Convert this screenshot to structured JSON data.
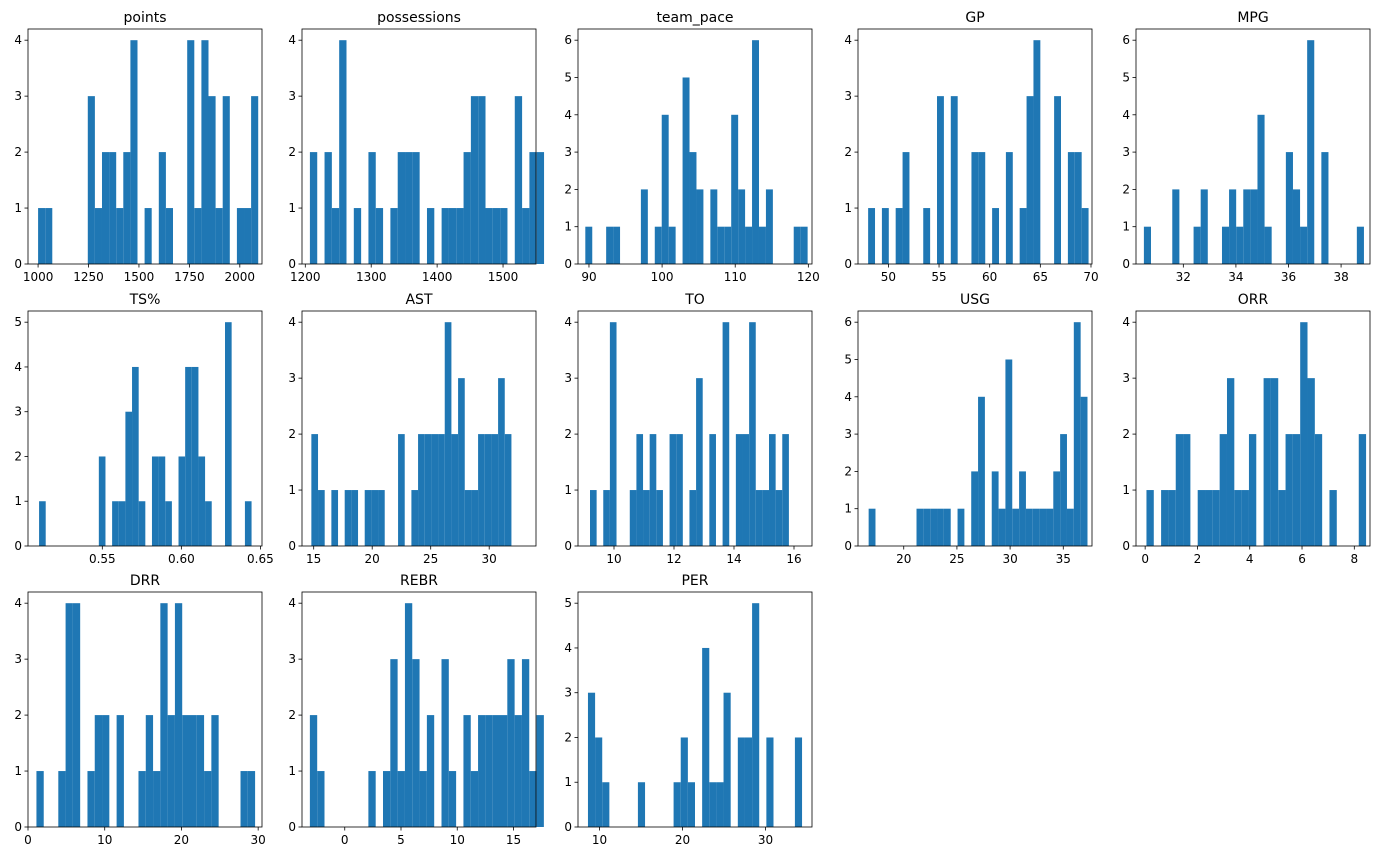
{
  "chart_data": [
    {
      "type": "bar",
      "title": "points",
      "xlim": [
        950,
        2110
      ],
      "ylim": [
        0,
        4.2
      ],
      "yticks": [
        0,
        1,
        2,
        3,
        4
      ],
      "xticks": [
        1000,
        1250,
        1500,
        1750,
        2000
      ],
      "xtick_labels": [
        "1000",
        "1250",
        "1500",
        "1750",
        "2000"
      ],
      "bins": {
        "start": 1000,
        "width": 35.2
      },
      "values": [
        1,
        1,
        0,
        0,
        0,
        0,
        0,
        3,
        1,
        2,
        2,
        1,
        2,
        4,
        0,
        1,
        0,
        2,
        1,
        0,
        0,
        4,
        1,
        4,
        3,
        1,
        3,
        0,
        1,
        1,
        3
      ]
    },
    {
      "type": "bar",
      "title": "possessions",
      "xlim": [
        1195,
        1550
      ],
      "ylim": [
        0,
        4.2
      ],
      "yticks": [
        0,
        1,
        2,
        3,
        4
      ],
      "xticks": [
        1200,
        1300,
        1400,
        1500
      ],
      "xtick_labels": [
        "1200",
        "1300",
        "1400",
        "1500"
      ],
      "bins": {
        "start": 1207,
        "width": 11.1
      },
      "values": [
        2,
        0,
        2,
        1,
        4,
        0,
        1,
        0,
        2,
        1,
        0,
        1,
        2,
        2,
        2,
        0,
        1,
        0,
        1,
        1,
        1,
        2,
        3,
        3,
        1,
        1,
        1,
        0,
        3,
        1,
        2,
        2
      ]
    },
    {
      "type": "bar",
      "title": "team_pace",
      "xlim": [
        88.5,
        120.5
      ],
      "ylim": [
        0,
        6.3
      ],
      "yticks": [
        0,
        1,
        2,
        3,
        4,
        5,
        6
      ],
      "xticks": [
        90,
        100,
        110,
        120
      ],
      "xtick_labels": [
        "90",
        "100",
        "110",
        "120"
      ],
      "bins": {
        "start": 89.5,
        "width": 0.95
      },
      "values": [
        1,
        0,
        0,
        1,
        1,
        0,
        0,
        0,
        2,
        0,
        1,
        4,
        1,
        0,
        5,
        3,
        2,
        0,
        2,
        1,
        1,
        4,
        2,
        1,
        6,
        1,
        2,
        0,
        0,
        0,
        1,
        1
      ]
    },
    {
      "type": "bar",
      "title": "GP",
      "xlim": [
        47.0,
        70.1
      ],
      "ylim": [
        0,
        4.2
      ],
      "yticks": [
        0,
        1,
        2,
        3,
        4
      ],
      "xticks": [
        50,
        55,
        60,
        65,
        70
      ],
      "xtick_labels": [
        "50",
        "55",
        "60",
        "65",
        "70"
      ],
      "bins": {
        "start": 48,
        "width": 0.68
      },
      "values": [
        1,
        0,
        1,
        0,
        1,
        2,
        0,
        0,
        1,
        0,
        3,
        0,
        3,
        0,
        0,
        2,
        2,
        0,
        1,
        0,
        2,
        0,
        1,
        3,
        4,
        0,
        0,
        3,
        0,
        2,
        2,
        1
      ]
    },
    {
      "type": "bar",
      "title": "MPG",
      "xlim": [
        30.2,
        39.1
      ],
      "ylim": [
        0,
        6.3
      ],
      "yticks": [
        0,
        1,
        2,
        3,
        4,
        5,
        6
      ],
      "xticks": [
        32,
        34,
        36,
        38
      ],
      "xtick_labels": [
        "32",
        "34",
        "36",
        "38"
      ],
      "bins": {
        "start": 30.5,
        "width": 0.27
      },
      "values": [
        1,
        0,
        0,
        0,
        2,
        0,
        0,
        1,
        2,
        0,
        0,
        1,
        2,
        1,
        2,
        2,
        4,
        1,
        0,
        0,
        3,
        2,
        1,
        6,
        0,
        3,
        0,
        0,
        0,
        0,
        1
      ]
    },
    {
      "type": "bar",
      "title": "TS%",
      "xlim": [
        0.503,
        0.651
      ],
      "ylim": [
        0,
        5.25
      ],
      "yticks": [
        0,
        1,
        2,
        3,
        4,
        5
      ],
      "xticks": [
        0.55,
        0.6,
        0.65
      ],
      "xtick_labels": [
        "0.55",
        "0.60",
        "0.65"
      ],
      "bins": {
        "start": 0.51,
        "width": 0.0042
      },
      "values": [
        1,
        0,
        0,
        0,
        0,
        0,
        0,
        0,
        0,
        2,
        0,
        1,
        1,
        3,
        4,
        1,
        0,
        2,
        2,
        1,
        0,
        2,
        4,
        4,
        2,
        1,
        0,
        0,
        5,
        0,
        0,
        1
      ]
    },
    {
      "type": "bar",
      "title": "AST",
      "xlim": [
        14.0,
        34.0
      ],
      "ylim": [
        0,
        4.2
      ],
      "yticks": [
        0,
        1,
        2,
        3,
        4
      ],
      "xticks": [
        15,
        20,
        25,
        30
      ],
      "xtick_labels": [
        "15",
        "20",
        "25",
        "30"
      ],
      "bins": {
        "start": 14.8,
        "width": 0.57
      },
      "values": [
        2,
        1,
        0,
        1,
        0,
        1,
        1,
        0,
        1,
        1,
        1,
        0,
        0,
        2,
        0,
        1,
        2,
        2,
        2,
        2,
        4,
        2,
        3,
        1,
        1,
        2,
        2,
        2,
        3,
        2
      ]
    },
    {
      "type": "bar",
      "title": "TO",
      "xlim": [
        8.8,
        16.6
      ],
      "ylim": [
        0,
        4.2
      ],
      "yticks": [
        0,
        1,
        2,
        3,
        4
      ],
      "xticks": [
        10,
        12,
        14,
        16
      ],
      "xtick_labels": [
        "10",
        "12",
        "14",
        "16"
      ],
      "bins": {
        "start": 9.2,
        "width": 0.221
      },
      "values": [
        1,
        0,
        1,
        4,
        0,
        0,
        1,
        2,
        1,
        2,
        1,
        0,
        2,
        2,
        0,
        1,
        3,
        0,
        2,
        0,
        4,
        0,
        2,
        2,
        4,
        1,
        1,
        2,
        1,
        2
      ]
    },
    {
      "type": "bar",
      "title": "USG",
      "xlim": [
        15.7,
        37.7
      ],
      "ylim": [
        0,
        6.3
      ],
      "yticks": [
        0,
        1,
        2,
        3,
        4,
        5,
        6
      ],
      "xticks": [
        20,
        25,
        30,
        35
      ],
      "xtick_labels": [
        "20",
        "25",
        "30",
        "35"
      ],
      "bins": {
        "start": 16.7,
        "width": 0.643
      },
      "values": [
        1,
        0,
        0,
        0,
        0,
        0,
        0,
        1,
        1,
        1,
        1,
        1,
        0,
        1,
        0,
        2,
        4,
        0,
        2,
        1,
        5,
        1,
        2,
        1,
        1,
        1,
        1,
        2,
        3,
        1,
        6,
        4
      ]
    },
    {
      "type": "bar",
      "title": "ORR",
      "xlim": [
        -0.35,
        8.6
      ],
      "ylim": [
        0,
        4.2
      ],
      "yticks": [
        0,
        1,
        2,
        3,
        4
      ],
      "xticks": [
        0,
        2,
        4,
        6,
        8
      ],
      "xtick_labels": [
        "0",
        "2",
        "4",
        "6",
        "8"
      ],
      "bins": {
        "start": 0.05,
        "width": 0.28
      },
      "values": [
        1,
        0,
        1,
        1,
        2,
        2,
        0,
        1,
        1,
        1,
        2,
        3,
        1,
        1,
        2,
        0,
        3,
        3,
        1,
        2,
        2,
        4,
        3,
        2,
        0,
        1,
        0,
        0,
        0,
        2
      ]
    },
    {
      "type": "bar",
      "title": "DRR",
      "xlim": [
        0.0,
        30.5
      ],
      "ylim": [
        0,
        4.2
      ],
      "yticks": [
        0,
        1,
        2,
        3,
        4
      ],
      "xticks": [
        0,
        10,
        20,
        30
      ],
      "xtick_labels": [
        "0",
        "10",
        "20",
        "30"
      ],
      "bins": {
        "start": 1.1,
        "width": 0.95
      },
      "values": [
        1,
        0,
        0,
        1,
        4,
        4,
        0,
        1,
        2,
        2,
        0,
        2,
        0,
        0,
        1,
        2,
        1,
        4,
        2,
        4,
        2,
        2,
        2,
        1,
        2,
        0,
        0,
        0,
        1,
        1
      ]
    },
    {
      "type": "bar",
      "title": "REBR",
      "xlim": [
        -3.8,
        17.0
      ],
      "ylim": [
        0,
        4.2
      ],
      "yticks": [
        0,
        1,
        2,
        3,
        4
      ],
      "xticks": [
        0,
        5,
        10,
        15
      ],
      "xtick_labels": [
        "0",
        "5",
        "10",
        "15"
      ],
      "bins": {
        "start": -3.1,
        "width": 0.65
      },
      "values": [
        2,
        1,
        0,
        0,
        0,
        0,
        0,
        0,
        1,
        0,
        1,
        3,
        1,
        4,
        3,
        1,
        2,
        0,
        3,
        1,
        0,
        2,
        1,
        2,
        2,
        2,
        2,
        3,
        2,
        3,
        1,
        2
      ]
    },
    {
      "type": "bar",
      "title": "PER",
      "xlim": [
        7.4,
        35.6
      ],
      "ylim": [
        0,
        5.25
      ],
      "yticks": [
        0,
        1,
        2,
        3,
        4,
        5
      ],
      "xticks": [
        10,
        20,
        30
      ],
      "xtick_labels": [
        "10",
        "20",
        "30"
      ],
      "bins": {
        "start": 8.6,
        "width": 0.86
      },
      "values": [
        3,
        2,
        1,
        0,
        0,
        0,
        0,
        1,
        0,
        0,
        0,
        0,
        1,
        2,
        1,
        0,
        4,
        1,
        1,
        3,
        0,
        2,
        2,
        5,
        0,
        2,
        0,
        0,
        0,
        2
      ]
    }
  ]
}
